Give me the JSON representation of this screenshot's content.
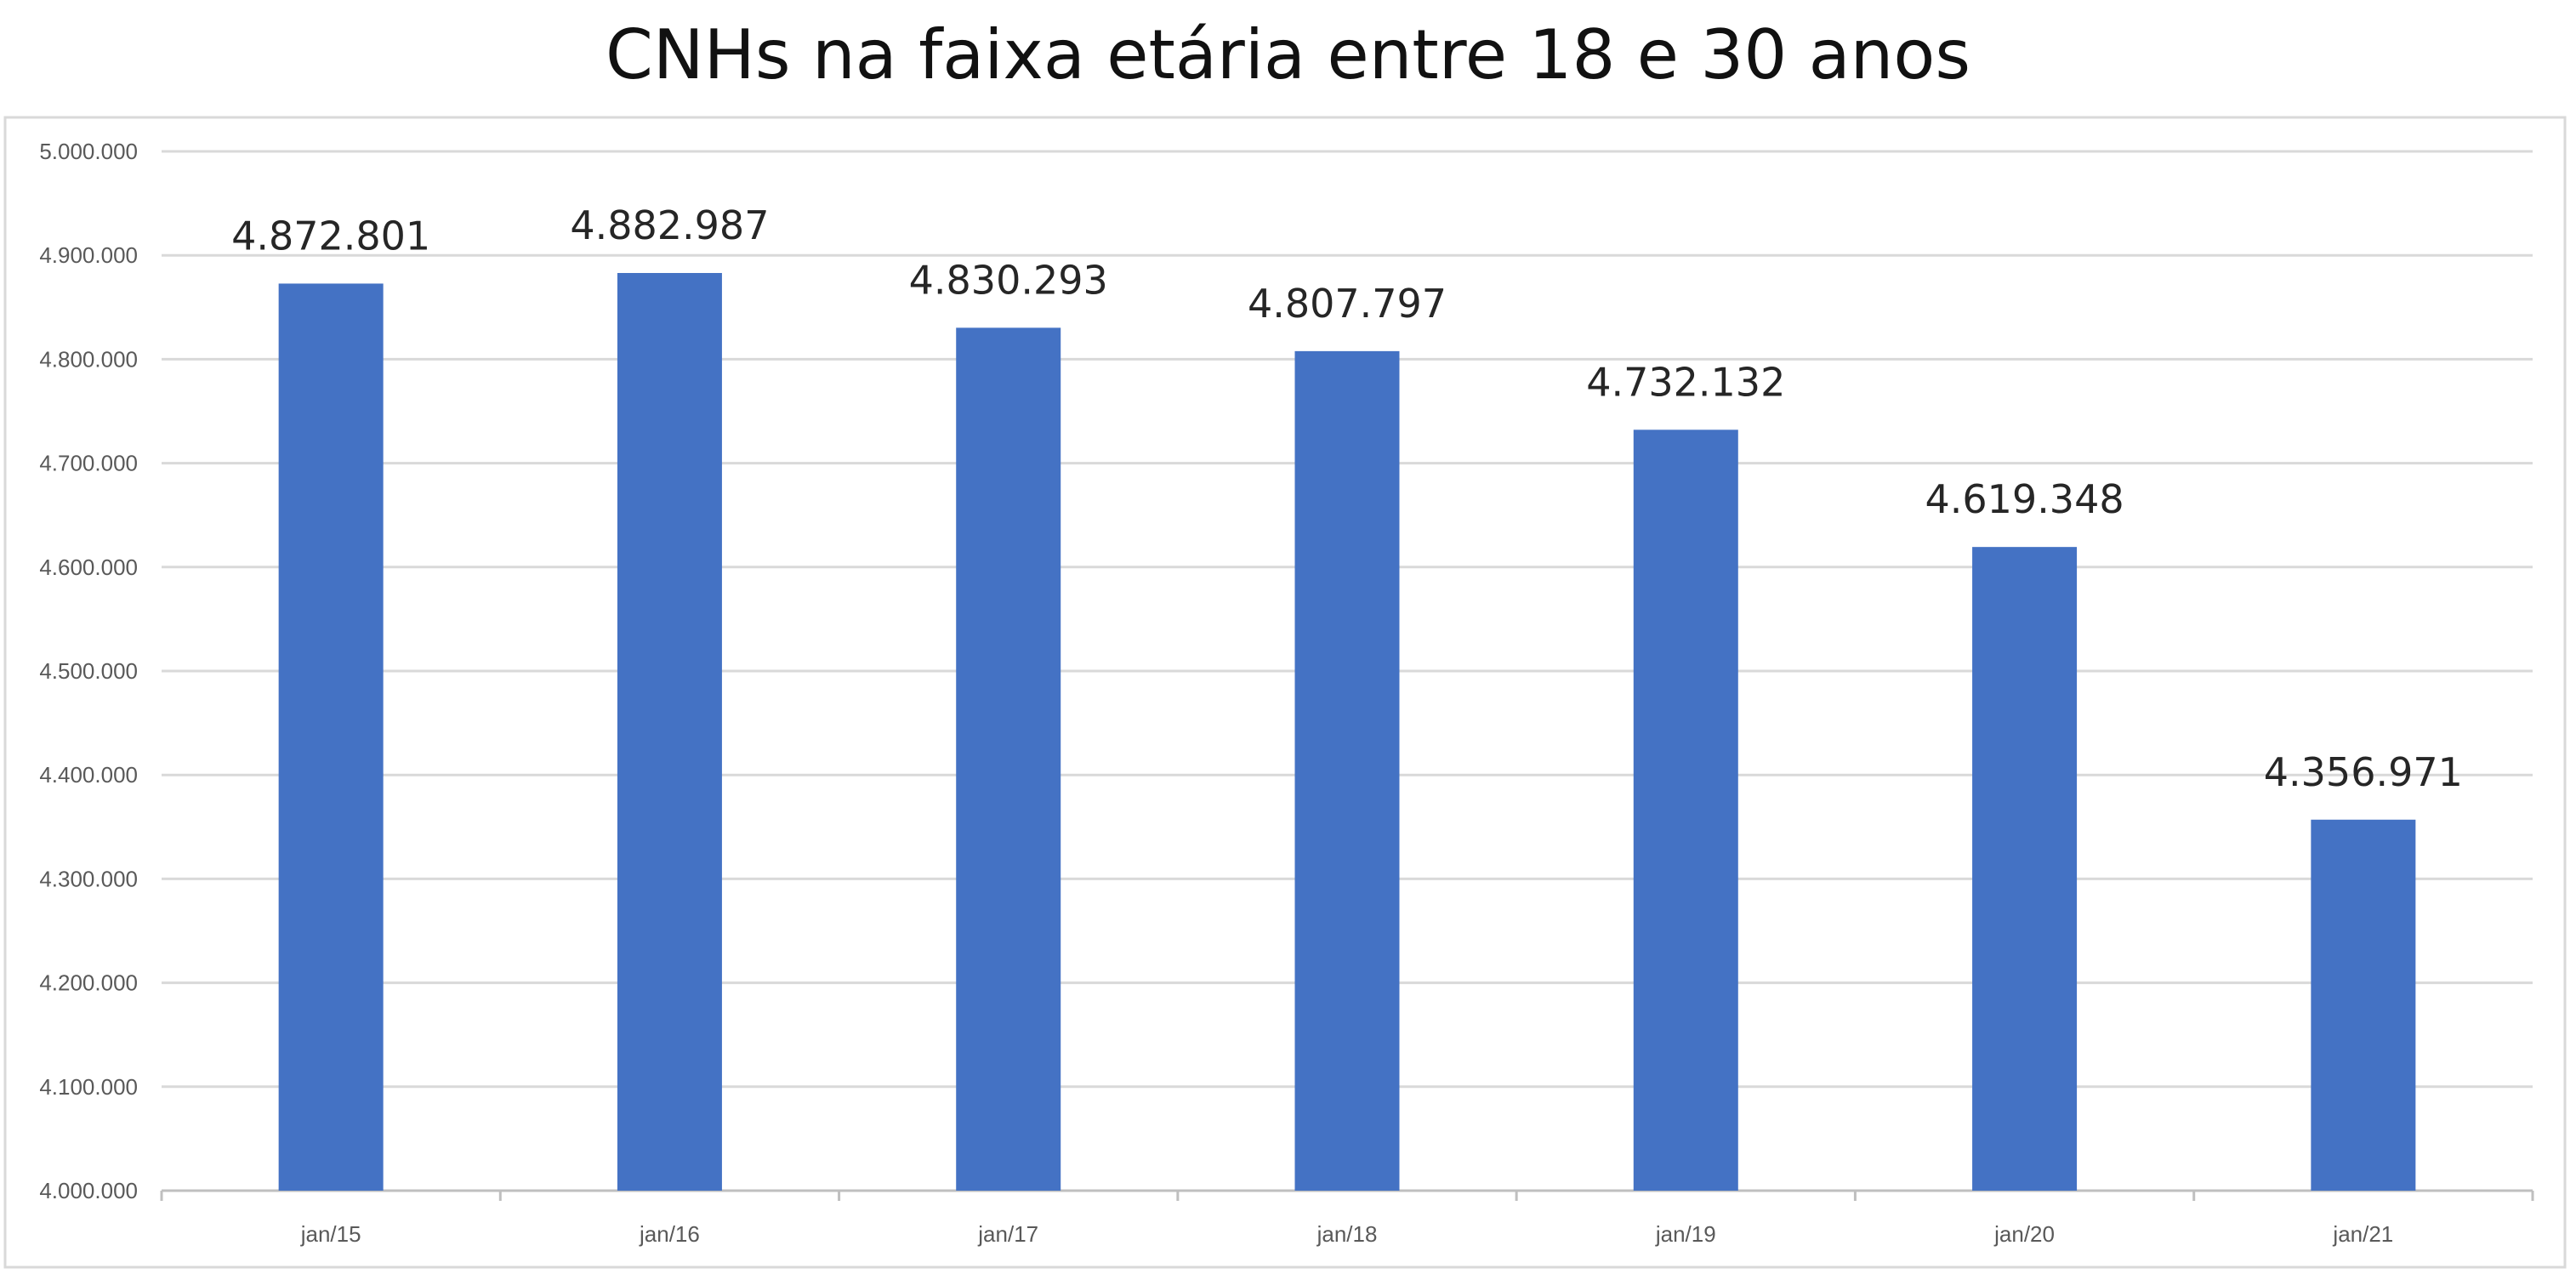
{
  "chart_data": {
    "type": "bar",
    "title": "CNHs na faixa etária entre 18 e 30 anos",
    "categories": [
      "jan/15",
      "jan/16",
      "jan/17",
      "jan/18",
      "jan/19",
      "jan/20",
      "jan/21"
    ],
    "values": [
      4872801,
      4882987,
      4830293,
      4807797,
      4732132,
      4619348,
      4356971
    ],
    "value_labels": [
      "4.872.801",
      "4.882.987",
      "4.830.293",
      "4.807.797",
      "4.732.132",
      "4.619.348",
      "4.356.971"
    ],
    "ylim": [
      4000000,
      5000000
    ],
    "y_ticks": [
      "4.000.000",
      "4.100.000",
      "4.200.000",
      "4.300.000",
      "4.400.000",
      "4.500.000",
      "4.600.000",
      "4.700.000",
      "4.800.000",
      "4.900.000",
      "5.000.000"
    ],
    "grid": true,
    "bar_color": "#4472C4"
  }
}
